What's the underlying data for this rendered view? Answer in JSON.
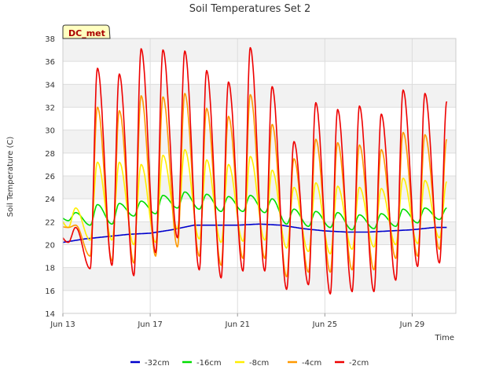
{
  "chart_data": {
    "type": "line",
    "title": "Soil Temperatures Set 2",
    "xlabel": "Time",
    "ylabel": "Soil Temperature (C)",
    "badge": "DC_met",
    "x_start": "Jun 13",
    "x_end": "Jun 30 12:00",
    "xlim_days": [
      13,
      31.0
    ],
    "ylim": [
      14,
      38
    ],
    "y_ticks": [
      14,
      16,
      18,
      20,
      22,
      24,
      26,
      28,
      30,
      32,
      34,
      36,
      38
    ],
    "x_ticks": [
      {
        "day": 13,
        "label": "Jun 13"
      },
      {
        "day": 17,
        "label": "Jun 17"
      },
      {
        "day": 21,
        "label": "Jun 21"
      },
      {
        "day": 25,
        "label": "Jun 25"
      },
      {
        "day": 29,
        "label": "Jun 29"
      }
    ],
    "grid": true,
    "legend_position": "bottom",
    "daily_peak_hour": 14,
    "series": [
      {
        "name": "-32cm",
        "color": "#0000cc",
        "kind": "smooth",
        "points": [
          [
            13.0,
            20.2
          ],
          [
            14,
            20.5
          ],
          [
            15,
            20.7
          ],
          [
            16,
            20.9
          ],
          [
            17,
            21.0
          ],
          [
            18,
            21.3
          ],
          [
            19,
            21.7
          ],
          [
            20,
            21.7
          ],
          [
            21,
            21.7
          ],
          [
            22,
            21.8
          ],
          [
            23,
            21.7
          ],
          [
            24,
            21.4
          ],
          [
            25,
            21.2
          ],
          [
            26,
            21.1
          ],
          [
            27,
            21.1
          ],
          [
            28,
            21.2
          ],
          [
            29,
            21.3
          ],
          [
            30,
            21.5
          ],
          [
            30.6,
            21.5
          ]
        ]
      },
      {
        "name": "-16cm",
        "color": "#00dd00",
        "kind": "daily",
        "days": [
          13,
          14,
          15,
          16,
          17,
          18,
          19,
          20,
          21,
          22,
          23,
          24,
          25,
          26,
          27,
          28,
          29,
          30
        ],
        "min": [
          22.1,
          21.7,
          21.8,
          22.5,
          22.7,
          23.2,
          23.1,
          22.9,
          22.9,
          22.8,
          21.8,
          21.6,
          21.5,
          21.3,
          21.4,
          21.6,
          21.9,
          22.2
        ],
        "max": [
          22.8,
          23.5,
          23.6,
          23.8,
          24.3,
          24.6,
          24.4,
          24.2,
          24.3,
          24.0,
          23.1,
          22.9,
          22.8,
          22.6,
          22.7,
          23.1,
          23.2,
          23.2
        ]
      },
      {
        "name": "-8cm",
        "color": "#ffee00",
        "kind": "daily",
        "days": [
          13,
          14,
          15,
          16,
          17,
          18,
          19,
          20,
          21,
          22,
          23,
          24,
          25,
          26,
          27,
          28,
          29,
          30
        ],
        "min": [
          21.5,
          20.4,
          20.4,
          20.0,
          20.2,
          21.4,
          20.5,
          20.2,
          20.3,
          20.4,
          19.7,
          19.4,
          19.2,
          19.6,
          19.8,
          20.0,
          20.1,
          20.6
        ],
        "max": [
          23.2,
          27.2,
          27.2,
          27.0,
          27.8,
          28.3,
          27.4,
          27.0,
          27.7,
          26.5,
          25.0,
          25.4,
          25.1,
          25.0,
          24.9,
          25.8,
          25.6,
          25.5
        ]
      },
      {
        "name": "-4cm",
        "color": "#ff9900",
        "kind": "daily",
        "days": [
          13,
          14,
          15,
          16,
          17,
          18,
          19,
          20,
          21,
          22,
          23,
          24,
          25,
          26,
          27,
          28,
          29,
          30
        ],
        "min": [
          21.5,
          19.0,
          18.6,
          18.4,
          19.0,
          19.8,
          19.0,
          18.2,
          18.8,
          18.8,
          17.2,
          17.6,
          17.6,
          17.8,
          17.8,
          18.8,
          19.0,
          19.6
        ],
        "max": [
          21.7,
          32.0,
          31.7,
          33.0,
          32.9,
          33.2,
          31.9,
          31.2,
          33.1,
          30.5,
          27.5,
          29.2,
          28.9,
          28.7,
          28.3,
          29.8,
          29.6,
          29.2
        ]
      },
      {
        "name": "-2cm",
        "color": "#ee0000",
        "kind": "daily",
        "days": [
          13,
          14,
          15,
          16,
          17,
          18,
          19,
          20,
          21,
          22,
          23,
          24,
          25,
          26,
          27,
          28,
          29,
          30
        ],
        "min": [
          20.2,
          17.9,
          18.2,
          17.3,
          19.3,
          20.6,
          17.8,
          17.1,
          17.7,
          17.7,
          16.1,
          16.5,
          15.7,
          15.9,
          15.9,
          16.9,
          18.1,
          18.4
        ],
        "max": [
          21.5,
          35.4,
          34.9,
          37.1,
          37.0,
          36.9,
          35.2,
          34.2,
          37.2,
          33.8,
          29.0,
          32.4,
          31.8,
          32.1,
          31.4,
          33.5,
          33.2,
          32.5
        ]
      }
    ]
  }
}
